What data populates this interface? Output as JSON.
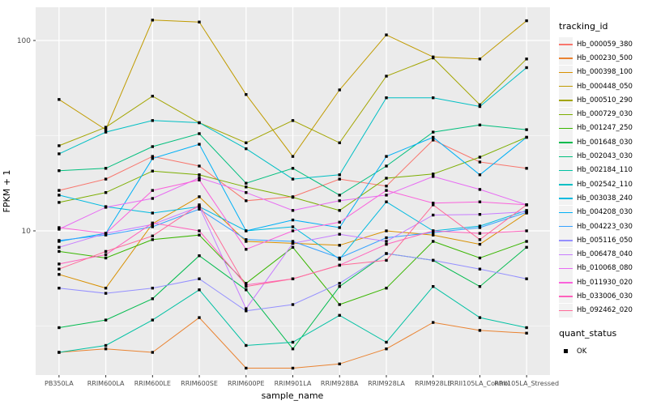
{
  "chart_data": {
    "type": "line",
    "title": "",
    "xlabel": "sample_name",
    "ylabel": "FPKM + 1",
    "y_scale": "log10",
    "ylim": [
      1.77,
      148
    ],
    "y_ticks": [
      10,
      100
    ],
    "y_minor_gridlines": [
      3.162,
      31.62
    ],
    "grid": true,
    "panel_bg": "#ebebeb",
    "grid_color": "#ffffff",
    "point_marker": "black-square",
    "point_color": "#000000",
    "legend_position": "right",
    "categories": [
      "PB350LA",
      "RRIM600LA",
      "RRIM600LE",
      "RRIM600SE",
      "RRIM600PE",
      "RRIM901LA",
      "RRIM928BA",
      "RRIM928LA",
      "RRIM928LE",
      "RRII105LA_Control",
      "RRII105LA_Stressed"
    ],
    "series": [
      {
        "name": "Hb_000059_380",
        "color": "#F8766D",
        "values": [
          16.3,
          18.7,
          24.6,
          21.9,
          14.4,
          15.1,
          18.7,
          17.2,
          30.0,
          23.0,
          21.3
        ]
      },
      {
        "name": "Hb_000230_500",
        "color": "#EA8331",
        "values": [
          2.3,
          2.4,
          2.3,
          3.5,
          1.9,
          1.9,
          2.0,
          2.4,
          3.3,
          3.0,
          2.9
        ]
      },
      {
        "name": "Hb_000398_100",
        "color": "#D89000",
        "values": [
          5.9,
          5.0,
          10.9,
          15.1,
          8.8,
          8.6,
          8.4,
          10.0,
          9.5,
          8.5,
          12.4
        ]
      },
      {
        "name": "Hb_000448_050",
        "color": "#C09B00",
        "values": [
          49,
          34,
          128,
          125,
          52,
          24.6,
          55,
          107,
          82,
          80,
          127
        ]
      },
      {
        "name": "Hb_000510_290",
        "color": "#A3A500",
        "values": [
          28,
          35,
          51,
          37,
          29,
          38,
          29,
          65,
          81,
          46,
          80
        ]
      },
      {
        "name": "Hb_000729_030",
        "color": "#7CAE00",
        "values": [
          14.1,
          15.9,
          20.6,
          19.7,
          17.0,
          15.0,
          12.8,
          18.9,
          19.9,
          24.4,
          31
        ]
      },
      {
        "name": "Hb_001247_250",
        "color": "#39B600",
        "values": [
          7.8,
          7.2,
          9.0,
          9.5,
          5.3,
          8.2,
          4.1,
          5.0,
          8.8,
          7.2,
          8.8
        ]
      },
      {
        "name": "Hb_001648_030",
        "color": "#00BB4E",
        "values": [
          3.1,
          3.4,
          4.4,
          7.4,
          4.9,
          2.4,
          5.1,
          7.6,
          7.0,
          5.1,
          8.2
        ]
      },
      {
        "name": "Hb_002043_030",
        "color": "#00BF7D",
        "values": [
          20.7,
          21.3,
          27.7,
          32.4,
          17.8,
          21.3,
          15.4,
          21.9,
          33,
          36,
          34
        ]
      },
      {
        "name": "Hb_002184_110",
        "color": "#00C1A3",
        "values": [
          2.3,
          2.5,
          3.4,
          4.9,
          2.5,
          2.6,
          3.6,
          2.6,
          5.1,
          3.5,
          3.1
        ]
      },
      {
        "name": "Hb_002542_110",
        "color": "#00BFC4",
        "values": [
          25.4,
          33,
          38,
          37,
          27,
          18.7,
          19.7,
          50,
          50,
          45,
          72
        ]
      },
      {
        "name": "Hb_003038_240",
        "color": "#00BAE0",
        "values": [
          15.4,
          13.4,
          12.4,
          13.4,
          10.0,
          10.5,
          7.1,
          14.2,
          10.0,
          10.6,
          12.8
        ]
      },
      {
        "name": "Hb_004208_030",
        "color": "#00B0F6",
        "values": [
          8.8,
          9.7,
          24.0,
          28.5,
          10.0,
          11.4,
          10.4,
          24.6,
          31.0,
          19.7,
          31.0
        ]
      },
      {
        "name": "Hb_004223_030",
        "color": "#35A2FF",
        "values": [
          8.9,
          9.5,
          10.5,
          13.0,
          9.0,
          8.8,
          7.2,
          9.2,
          9.8,
          10.4,
          12.5
        ]
      },
      {
        "name": "Hb_005116_050",
        "color": "#9590FF",
        "values": [
          5.0,
          4.7,
          5.0,
          5.6,
          3.8,
          4.1,
          5.3,
          7.6,
          7.0,
          6.3,
          5.6
        ]
      },
      {
        "name": "Hb_006478_040",
        "color": "#C77CFF",
        "values": [
          8.2,
          9.7,
          10.8,
          13.4,
          3.9,
          8.6,
          9.6,
          8.8,
          12.1,
          12.2,
          12.6
        ]
      },
      {
        "name": "Hb_010068_080",
        "color": "#E76BF3",
        "values": [
          10.2,
          13.3,
          14.8,
          19.0,
          15.9,
          12.8,
          14.4,
          15.4,
          19.3,
          16.5,
          13.7
        ]
      },
      {
        "name": "Hb_011930_020",
        "color": "#FA62DB",
        "values": [
          10.4,
          9.7,
          16.3,
          18.5,
          8.0,
          10.0,
          11.1,
          16.3,
          14.0,
          14.2,
          13.7
        ]
      },
      {
        "name": "Hb_033006_030",
        "color": "#FF62BC",
        "values": [
          6.7,
          7.5,
          11.0,
          10.0,
          5.2,
          5.6,
          6.6,
          8.5,
          10.0,
          9.7,
          10.0
        ]
      },
      {
        "name": "Hb_092462_020",
        "color": "#FF6A98",
        "values": [
          6.3,
          7.8,
          9.4,
          13.7,
          5.1,
          5.6,
          6.6,
          7.0,
          13.7,
          9.0,
          13.7
        ]
      }
    ]
  },
  "legend": {
    "tracking_title": "tracking_id",
    "quant_title": "quant_status",
    "quant_items": [
      {
        "label": "OK",
        "marker": "black-square"
      }
    ]
  }
}
